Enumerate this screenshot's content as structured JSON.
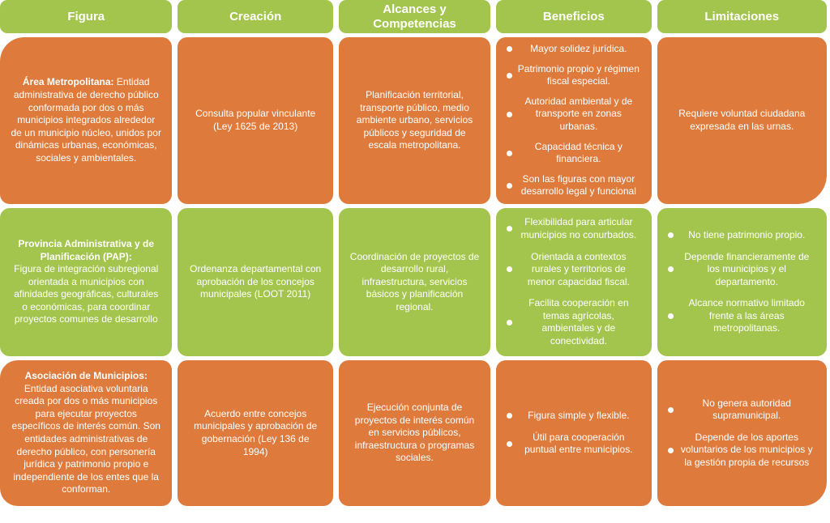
{
  "colors": {
    "green": "#a4c54d",
    "orange": "#de7b3c",
    "text": "#ffffff",
    "background": "#ffffff"
  },
  "headers": [
    "Figura",
    "Creación",
    "Alcances y Competencias",
    "Beneficios",
    "Limitaciones"
  ],
  "rows": [
    {
      "figura_bold": "Área Metropolitana:",
      "figura_text": " Entidad administrativa de derecho público conformada por dos o más municipios integrados alrededor de un municipio núcleo, unidos por dinámicas urbanas, económicas, sociales y ambientales.",
      "creacion": "Consulta popular vinculante (Ley 1625 de 2013)",
      "alcances": "Planificación territorial, transporte público, medio ambiente urbano, servicios públicos y seguridad de escala metropolitana.",
      "beneficios": [
        "Mayor solidez jurídica.",
        "Patrimonio propio y régimen fiscal especial.",
        "Autoridad ambiental y de transporte en zonas urbanas.",
        "Capacidad técnica y financiera.",
        "Son las figuras con mayor desarrollo legal y funcional"
      ],
      "limitaciones_text": "Requiere voluntad ciudadana expresada en las urnas."
    },
    {
      "figura_bold": "Provincia Administrativa y de Planificación (PAP):",
      "figura_text": "Figura de integración subregional orientada a municipios con afinidades geográficas, culturales o económicas, para coordinar proyectos comunes de desarrollo",
      "creacion": "Ordenanza departamental con aprobación de los concejos municipales (LOOT 2011)",
      "alcances": "Coordinación de proyectos de desarrollo rural, infraestructura, servicios básicos y planificación regional.",
      "beneficios": [
        "Flexibilidad para articular municipios no conurbados.",
        "Orientada a contextos rurales y territorios de menor capacidad fiscal.",
        "Facilita cooperación en temas agrícolas, ambientales y de conectividad."
      ],
      "limitaciones": [
        "No tiene patrimonio propio.",
        "Depende financieramente de los municipios y el departamento.",
        "Alcance normativo limitado frente a las áreas metropolitanas."
      ]
    },
    {
      "figura_bold": "Asociación de Municipios:",
      "figura_text": "Entidad asociativa voluntaria creada por dos o más municipios para ejecutar proyectos específicos de interés común. Son entidades administrativas de derecho público, con personería jurídica y patrimonio propio e independiente de los entes que la conforman.",
      "creacion": "Acuerdo entre concejos municipales y aprobación de gobernación (Ley 136 de 1994)",
      "alcances": "Ejecución conjunta de proyectos de interés común en servicios públicos, infraestructura o programas sociales.",
      "beneficios": [
        "Figura simple y flexible.",
        "Útil para cooperación puntual entre municipios."
      ],
      "limitaciones": [
        "No genera autoridad supramunicipal.",
        "Depende de los aportes voluntarios de los municipios y la gestión propia de recursos"
      ]
    }
  ]
}
